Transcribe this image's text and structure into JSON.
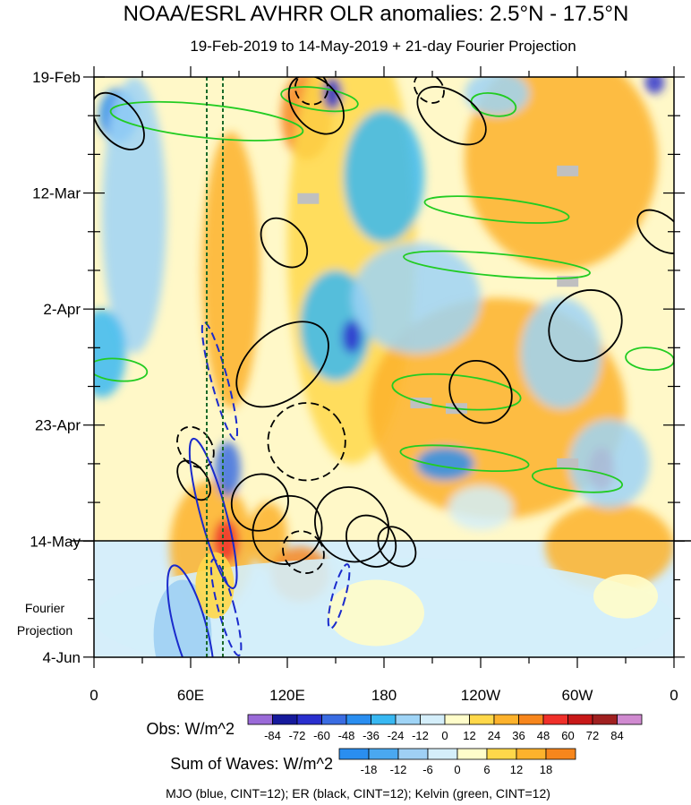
{
  "chart_data": {
    "type": "heatmap",
    "title": "NOAA/ESRL AVHRR OLR anomalies: 2.5°N - 17.5°N",
    "subtitle": "19-Feb-2019 to 14-May-2019 + 21-day Fourier Projection",
    "xlabel": "",
    "ylabel": "",
    "x_ticks": [
      "0",
      "60E",
      "120E",
      "180",
      "120W",
      "60W",
      "0"
    ],
    "xlim": [
      0,
      360
    ],
    "y_ticks": [
      "19-Feb",
      "12-Mar",
      "2-Apr",
      "23-Apr",
      "14-May",
      "4-Jun"
    ],
    "y_side_label": [
      "Fourier",
      "Projection"
    ],
    "observed_period": [
      "19-Feb-2019",
      "14-May-2019"
    ],
    "projection_days": 21,
    "obs_colorbar": {
      "label": "Obs: W/m^2",
      "ticks": [
        -84,
        -72,
        -60,
        -48,
        -36,
        -24,
        -12,
        0,
        12,
        24,
        36,
        48,
        60,
        72,
        84
      ],
      "colors": [
        "#9a6ad8",
        "#161a9c",
        "#2a2fce",
        "#3a6ce2",
        "#2a8ef0",
        "#38b8f2",
        "#9fd4f6",
        "#d4eefa",
        "#fffdca",
        "#ffd84a",
        "#fdb22c",
        "#f7861c",
        "#f0302a",
        "#c81818",
        "#a02020",
        "#d08ad0"
      ]
    },
    "wave_colorbar": {
      "label": "Sum of Waves: W/m^2",
      "ticks": [
        -18,
        -12,
        -6,
        0,
        6,
        12,
        18
      ],
      "colors": [
        "#2a8ef0",
        "#4aa8f0",
        "#9fd0f4",
        "#d4eefa",
        "#fffdca",
        "#ffd84a",
        "#fdb22c",
        "#f7861c"
      ]
    },
    "contours_note": "MJO (blue, CINT=12); ER (black, CINT=12); Kelvin (green, CINT=12)",
    "reference_longitudes_dashed": [
      70,
      80
    ],
    "contour_colors": {
      "mjo": "#1a2acc",
      "er": "#000000",
      "kelvin": "#22cc22"
    },
    "mjo_contours": [
      {
        "lon": 74,
        "day": 79,
        "rlon": 8,
        "rday": 14,
        "angle": -15,
        "sign": "positive"
      },
      {
        "lon": 82,
        "day": 96,
        "rlon": 5,
        "rday": 9,
        "angle": -15,
        "sign": "negative"
      },
      {
        "lon": 78,
        "day": 55,
        "rlon": 5,
        "rday": 11,
        "angle": -15,
        "sign": "negative"
      },
      {
        "lon": 60,
        "day": 100,
        "rlon": 10,
        "rday": 12,
        "angle": -15,
        "sign": "positive"
      },
      {
        "lon": 152,
        "day": 94,
        "rlon": 4,
        "rday": 6,
        "angle": 15,
        "sign": "negative"
      }
    ],
    "er_contours": [
      {
        "lon": 15,
        "day": 8,
        "rlon": 12,
        "rday": 6,
        "angle": -40,
        "sign": "positive"
      },
      {
        "lon": 138,
        "day": 5,
        "rlon": 14,
        "rday": 6,
        "angle": -40,
        "sign": "positive"
      },
      {
        "lon": 135,
        "day": 2,
        "rlon": 10,
        "rday": 3,
        "angle": -35,
        "sign": "negative"
      },
      {
        "lon": 222,
        "day": 7,
        "rlon": 14,
        "rday": 7,
        "angle": -55,
        "sign": "positive"
      },
      {
        "lon": 208,
        "day": 2,
        "rlon": 8,
        "rday": 3,
        "angle": -45,
        "sign": "negative"
      },
      {
        "lon": 118,
        "day": 30,
        "rlon": 12,
        "rday": 5,
        "angle": -40,
        "sign": "positive"
      },
      {
        "lon": 352,
        "day": 28,
        "rlon": 10,
        "rday": 5,
        "angle": -50,
        "sign": "positive"
      },
      {
        "lon": 305,
        "day": 45,
        "rlon": 24,
        "rday": 6,
        "angle": -40,
        "sign": "positive"
      },
      {
        "lon": 117,
        "day": 52,
        "rlon": 33,
        "rday": 6,
        "angle": -40,
        "sign": "positive"
      },
      {
        "lon": 240,
        "day": 57,
        "rlon": 18,
        "rday": 6,
        "angle": -45,
        "sign": "positive"
      },
      {
        "lon": 132,
        "day": 66,
        "rlon": 24,
        "rday": 7,
        "angle": -40,
        "sign": "negative"
      },
      {
        "lon": 63,
        "day": 67,
        "rlon": 10,
        "rday": 4,
        "angle": -35,
        "sign": "negative"
      },
      {
        "lon": 62,
        "day": 73,
        "rlon": 8,
        "rday": 4,
        "angle": -35,
        "sign": "positive"
      },
      {
        "lon": 103,
        "day": 77,
        "rlon": 18,
        "rday": 5,
        "angle": -45,
        "sign": "positive"
      },
      {
        "lon": 120,
        "day": 82,
        "rlon": 22,
        "rday": 6,
        "angle": -40,
        "sign": "positive"
      },
      {
        "lon": 160,
        "day": 81,
        "rlon": 22,
        "rday": 7,
        "angle": -40,
        "sign": "positive"
      },
      {
        "lon": 172,
        "day": 84,
        "rlon": 14,
        "rday": 5,
        "angle": -40,
        "sign": "positive"
      },
      {
        "lon": 130,
        "day": 86,
        "rlon": 12,
        "rday": 4,
        "angle": -40,
        "sign": "negative"
      },
      {
        "lon": 188,
        "day": 85,
        "rlon": 10,
        "rday": 4,
        "angle": -40,
        "sign": "positive"
      }
    ],
    "kelvin_contours": [
      {
        "lon": 70,
        "day": 8,
        "rlon": 60,
        "rday": 3,
        "angle": 6,
        "sign": "positive"
      },
      {
        "lon": 140,
        "day": 4,
        "rlon": 24,
        "rday": 2,
        "angle": 8,
        "sign": "positive"
      },
      {
        "lon": 248,
        "day": 5,
        "rlon": 14,
        "rday": 2,
        "angle": 10,
        "sign": "positive"
      },
      {
        "lon": 250,
        "day": 24,
        "rlon": 45,
        "rday": 2,
        "angle": 6,
        "sign": "positive"
      },
      {
        "lon": 250,
        "day": 34,
        "rlon": 58,
        "rday": 2,
        "angle": 5,
        "sign": "positive"
      },
      {
        "lon": 225,
        "day": 57,
        "rlon": 40,
        "rday": 3,
        "angle": 6,
        "sign": "positive"
      },
      {
        "lon": 230,
        "day": 69,
        "rlon": 40,
        "rday": 2,
        "angle": 6,
        "sign": "positive"
      },
      {
        "lon": 300,
        "day": 73,
        "rlon": 28,
        "rday": 2,
        "angle": 6,
        "sign": "positive"
      },
      {
        "lon": 15,
        "day": 53,
        "rlon": 18,
        "rday": 2,
        "angle": 5,
        "sign": "positive"
      },
      {
        "lon": 345,
        "day": 51,
        "rlon": 15,
        "rday": 2,
        "angle": 5,
        "sign": "positive"
      }
    ],
    "missing_data_boxes": [
      {
        "lon": 133,
        "day": 22
      },
      {
        "lon": 203,
        "day": 59
      },
      {
        "lon": 225,
        "day": 60
      },
      {
        "lon": 294,
        "day": 37
      },
      {
        "lon": 294,
        "day": 17
      },
      {
        "lon": 294,
        "day": 70
      }
    ],
    "obs_anomaly_regions": [
      {
        "lon": 73,
        "day": 85,
        "rlon": 26,
        "rday": 12,
        "value": 30
      },
      {
        "lon": 82,
        "day": 84,
        "rlon": 8,
        "rday": 4,
        "value": 55
      },
      {
        "lon": 108,
        "day": 83,
        "rlon": 12,
        "rday": 6,
        "value": 30
      },
      {
        "lon": 128,
        "day": 90,
        "rlon": 18,
        "rday": 5,
        "value": 36
      },
      {
        "lon": 132,
        "day": 7,
        "rlon": 16,
        "rday": 8,
        "value": 36
      },
      {
        "lon": 85,
        "day": 35,
        "rlon": 18,
        "rday": 25,
        "value": 24
      },
      {
        "lon": 160,
        "day": 30,
        "rlon": 40,
        "rday": 40,
        "value": 18
      },
      {
        "lon": 290,
        "day": 15,
        "rlon": 60,
        "rday": 20,
        "value": 24
      },
      {
        "lon": 250,
        "day": 60,
        "rlon": 80,
        "rday": 20,
        "value": 24
      },
      {
        "lon": 320,
        "day": 85,
        "rlon": 40,
        "rday": 8,
        "value": 24
      },
      {
        "lon": 315,
        "day": 71,
        "rlon": 8,
        "rday": 4,
        "value": 48
      },
      {
        "lon": 15,
        "day": 7,
        "rlon": 12,
        "rday": 5,
        "value": -48
      },
      {
        "lon": 25,
        "day": 25,
        "rlon": 20,
        "rday": 25,
        "value": -24
      },
      {
        "lon": 180,
        "day": 18,
        "rlon": 25,
        "rday": 12,
        "value": -36
      },
      {
        "lon": 150,
        "day": 45,
        "rlon": 22,
        "rday": 10,
        "value": -36
      },
      {
        "lon": 160,
        "day": 47,
        "rlon": 6,
        "rday": 3,
        "value": -72
      },
      {
        "lon": 148,
        "day": 3,
        "rlon": 6,
        "rday": 3,
        "value": -72
      },
      {
        "lon": 83,
        "day": 71,
        "rlon": 8,
        "rday": 5,
        "value": -60
      },
      {
        "lon": 218,
        "day": 70,
        "rlon": 18,
        "rday": 3,
        "value": -48
      },
      {
        "lon": 200,
        "day": 40,
        "rlon": 40,
        "rday": 10,
        "value": -24
      },
      {
        "lon": 320,
        "day": 70,
        "rlon": 25,
        "rday": 8,
        "value": -24
      },
      {
        "lon": 290,
        "day": 50,
        "rlon": 25,
        "rday": 10,
        "value": -24
      },
      {
        "lon": 250,
        "day": 3,
        "rlon": 20,
        "rday": 4,
        "value": -24
      },
      {
        "lon": 348,
        "day": 1,
        "rlon": 6,
        "rday": 2,
        "value": -72
      },
      {
        "lon": 5,
        "day": 50,
        "rlon": 15,
        "rday": 8,
        "value": -36
      },
      {
        "lon": 240,
        "day": 78,
        "rlon": 20,
        "rday": 4,
        "value": -12
      }
    ],
    "projection_wave_regions": [
      {
        "lon": 180,
        "day": 98,
        "rlon": 180,
        "rday": 11,
        "value": -6
      },
      {
        "lon": 55,
        "day": 101,
        "rlon": 18,
        "rday": 10,
        "value": -12
      },
      {
        "lon": 75,
        "day": 92,
        "rlon": 12,
        "rday": 6,
        "value": 6
      },
      {
        "lon": 175,
        "day": 97,
        "rlon": 30,
        "rday": 6,
        "value": 3
      },
      {
        "lon": 330,
        "day": 94,
        "rlon": 20,
        "rday": 4,
        "value": 3
      }
    ]
  }
}
